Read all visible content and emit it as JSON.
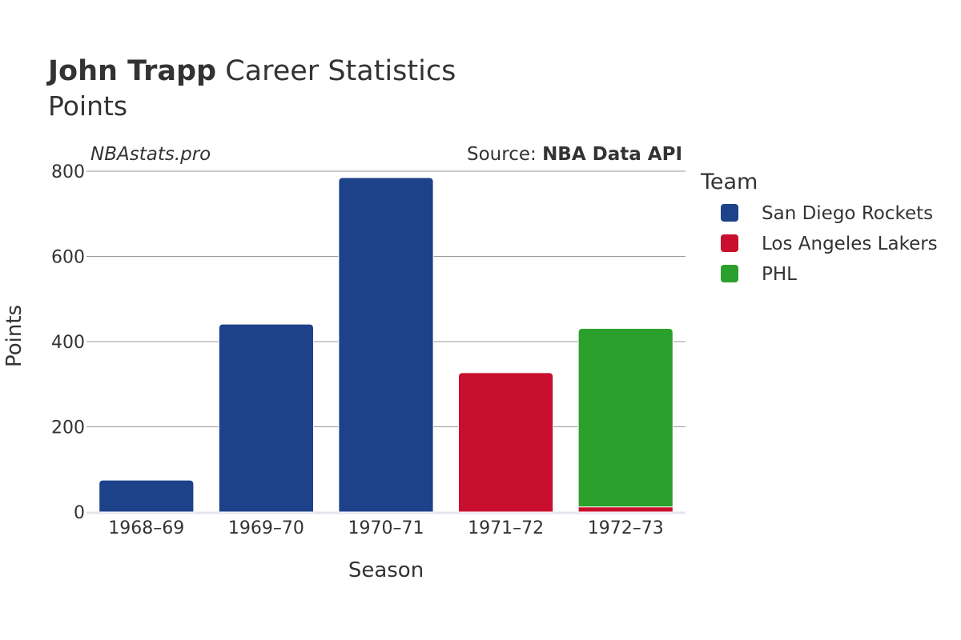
{
  "header": {
    "player": "John Trapp",
    "title_rest": " Career Statistics",
    "subtitle": "Points"
  },
  "watermark": "NBAstats.pro",
  "source": {
    "prefix": "Source: ",
    "name": "NBA Data API"
  },
  "legend": {
    "title": "Team"
  },
  "chart_data": {
    "type": "bar",
    "stacked": true,
    "categories": [
      "1968–69",
      "1969–70",
      "1970–71",
      "1971–72",
      "1972–73"
    ],
    "series": [
      {
        "name": "San Diego Rockets",
        "color": "#1d428a",
        "values": [
          75,
          441,
          785,
          0,
          0
        ]
      },
      {
        "name": "Los Angeles Lakers",
        "color": "#c8102e",
        "values": [
          0,
          0,
          0,
          327,
          12
        ]
      },
      {
        "name": "PHL",
        "color": "#2ca02c",
        "values": [
          0,
          0,
          0,
          0,
          419
        ]
      }
    ],
    "xlabel": "Season",
    "ylabel": "Points",
    "ylim": [
      0,
      800
    ],
    "yticks": [
      0,
      200,
      400,
      600,
      800
    ],
    "grid": true,
    "legend_position": "right"
  }
}
